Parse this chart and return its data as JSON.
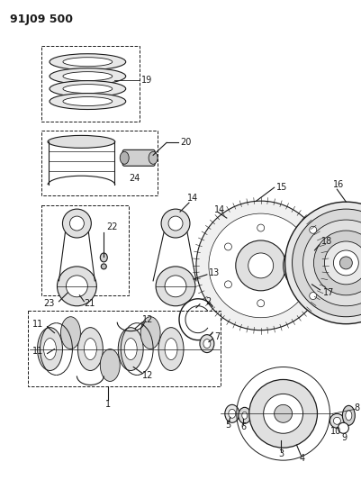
{
  "title": "91J09 500",
  "bg_color": "#ffffff",
  "line_color": "#1a1a1a",
  "title_fontsize": 9,
  "label_fontsize": 7,
  "fig_width": 4.02,
  "fig_height": 5.33,
  "dpi": 100
}
